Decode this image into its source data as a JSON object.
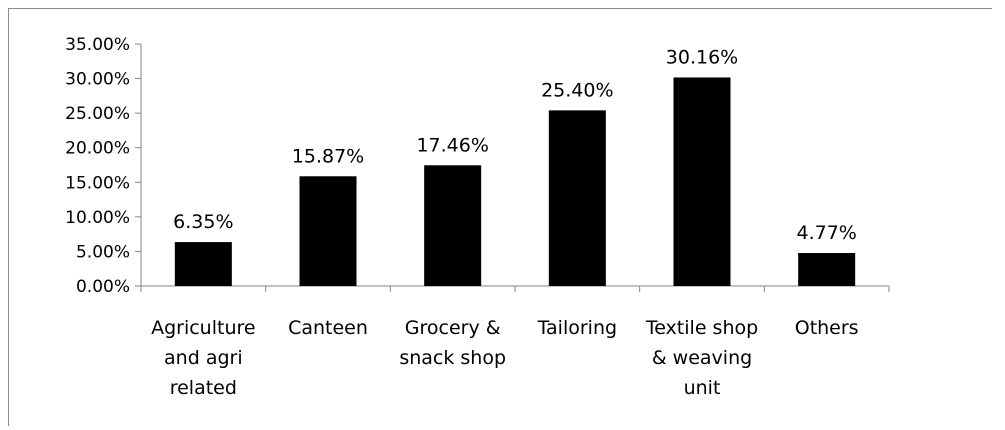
{
  "chart_data": {
    "type": "bar",
    "title": "",
    "xlabel": "",
    "ylabel": "",
    "categories": [
      [
        "Agriculture",
        "and agri",
        "related"
      ],
      [
        "Canteen"
      ],
      [
        "Grocery &",
        "snack shop"
      ],
      [
        "Tailoring"
      ],
      [
        "Textile shop",
        "& weaving",
        "unit"
      ],
      [
        "Others"
      ]
    ],
    "values": [
      6.35,
      15.87,
      17.46,
      25.4,
      30.16,
      4.77
    ],
    "value_labels": [
      "6.35%",
      "15.87%",
      "17.46%",
      "25.40%",
      "30.16%",
      "4.77%"
    ],
    "ylim": [
      0,
      35
    ],
    "yticks": [
      0,
      5,
      10,
      15,
      20,
      25,
      30,
      35
    ],
    "ytick_labels": [
      "0.00%",
      "5.00%",
      "10.00%",
      "15.00%",
      "20.00%",
      "25.00%",
      "30.00%",
      "35.00%"
    ],
    "grid": false,
    "legend": "none",
    "bar_color": "#000000",
    "axis_color": "#868686"
  }
}
